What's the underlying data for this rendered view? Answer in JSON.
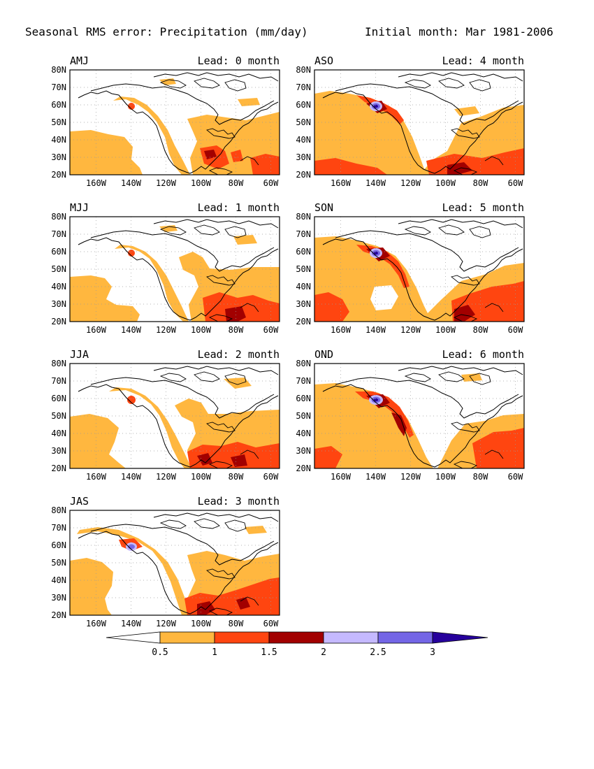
{
  "header": {
    "title": "Seasonal RMS error: Precipitation (mm/day)",
    "initial": "Initial month: Mar 1981-2006"
  },
  "colors": {
    "c0": "#ffffff",
    "c1": "#ffb73f",
    "c2": "#ff4510",
    "c3": "#a20000",
    "c4": "#c5b9ff",
    "c5": "#7466e6",
    "c6": "#26009c",
    "coast": "#000000",
    "grid": "#9a9a9a"
  },
  "axes": {
    "lat_labels": [
      "80N",
      "70N",
      "60N",
      "50N",
      "40N",
      "30N",
      "20N"
    ],
    "lon_labels": [
      "160W",
      "140W",
      "120W",
      "100W",
      "80W",
      "60W"
    ]
  },
  "panels": [
    {
      "season": "AMJ",
      "lead": "Lead: 0 month"
    },
    {
      "season": "ASO",
      "lead": "Lead: 4 month"
    },
    {
      "season": "MJJ",
      "lead": "Lead: 1 month"
    },
    {
      "season": "SON",
      "lead": "Lead: 5 month"
    },
    {
      "season": "JJA",
      "lead": "Lead: 2 month"
    },
    {
      "season": "OND",
      "lead": "Lead: 6 month"
    },
    {
      "season": "JAS",
      "lead": "Lead: 3 month"
    }
  ],
  "colorbar": {
    "ticks": [
      "0.5",
      "1",
      "1.5",
      "2",
      "2.5",
      "3"
    ]
  }
}
